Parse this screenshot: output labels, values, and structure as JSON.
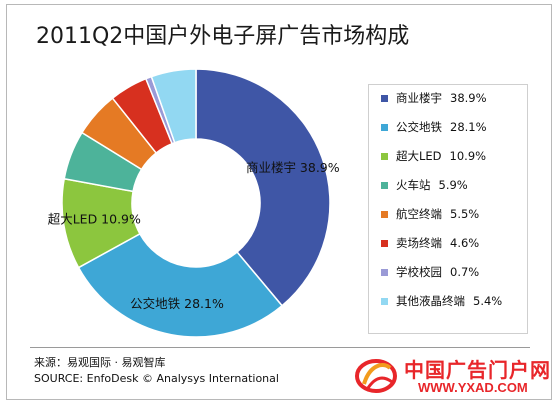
{
  "title": "2011Q2中国户外电子屏广告市场构成",
  "chart_data": {
    "type": "pie",
    "subtype": "donut",
    "title": "2011Q2中国户外电子屏广告市场构成",
    "legend_placement": "right",
    "slices": [
      {
        "name": "商业楼宇",
        "value": 38.9,
        "label": "38.9%",
        "color": "#3f56a6"
      },
      {
        "name": "公交地铁",
        "value": 28.1,
        "label": "28.1%",
        "color": "#3ea7d6"
      },
      {
        "name": "超大LED",
        "value": 10.9,
        "label": "10.9%",
        "color": "#8cc63e"
      },
      {
        "name": "火车站",
        "value": 5.9,
        "label": "5.9%",
        "color": "#4db39a"
      },
      {
        "name": "航空终端",
        "value": 5.5,
        "label": "5.5%",
        "color": "#e57a24"
      },
      {
        "name": "卖场终端",
        "value": 4.6,
        "label": "4.6%",
        "color": "#d7301f"
      },
      {
        "name": "学校校园",
        "value": 0.7,
        "label": "0.7%",
        "color": "#9a9ad6"
      },
      {
        "name": "其他液晶终端",
        "value": 5.4,
        "label": "5.4%",
        "color": "#92d8f2"
      }
    ],
    "data_labels": [
      {
        "slice": 0,
        "text": "商业楼宇  38.9%"
      },
      {
        "slice": 1,
        "text": "公交地铁  28.1%"
      },
      {
        "slice": 2,
        "text": "超大LED  10.9%"
      }
    ]
  },
  "footer": {
    "source_cn": "来源：易观国际 · 易观智库",
    "source_en": "SOURCE: EnfoDesk © Analysys International"
  },
  "watermark": {
    "name_cn": "中国广告门户网",
    "url": "WWW.YXAD.COM"
  }
}
